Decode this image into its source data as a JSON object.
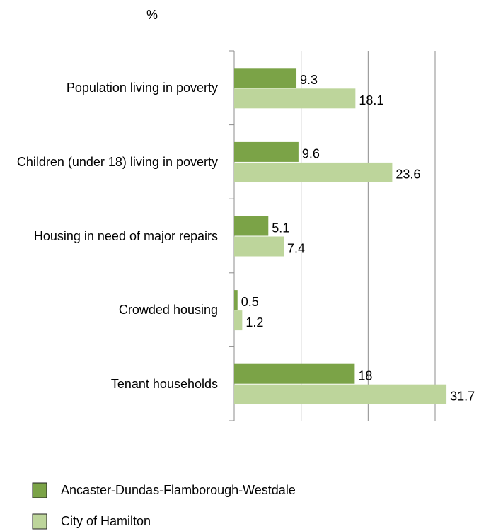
{
  "chart_data": {
    "type": "hbar",
    "title": "%",
    "categories": [
      "Population living in poverty",
      "Children (under 18) living in poverty",
      "Housing in need of major repairs",
      "Crowded housing",
      "Tenant households"
    ],
    "series": [
      {
        "name": "Ancaster-Dundas-Flamborough-Westdale",
        "color": "#7ba347",
        "values": [
          9.3,
          9.6,
          5.1,
          0.5,
          18
        ]
      },
      {
        "name": "City of Hamilton",
        "color": "#bdd59b",
        "values": [
          18.1,
          23.6,
          7.4,
          1.2,
          31.7
        ]
      }
    ],
    "xlim": [
      0,
      30
    ],
    "xticks": [
      0,
      10,
      20,
      30
    ],
    "grid": true,
    "legend": "bottom"
  }
}
